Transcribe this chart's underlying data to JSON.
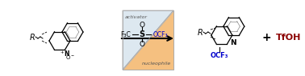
{
  "bg_color": "#ffffff",
  "arrow_color": "#000000",
  "reagent_box_bg": "#f5c48a",
  "reagent_box_border": "#cc6600",
  "activator_text": "activator",
  "nucleophile_text": "nucleophile",
  "reagent_formula_left": "F₃C",
  "reagent_formula_right": "OCF₃",
  "reagent_so2": "S",
  "tfoh_text": "TfOH",
  "plus_text": "+",
  "figsize": [
    3.78,
    0.95
  ],
  "dpi": 100,
  "struct_left_color": "#000000",
  "struct_right_N_color": "#000000",
  "ocf3_color": "#0000cc",
  "tfoh_color": "#8b0000",
  "activator_italic": true,
  "nucleophile_italic": true
}
